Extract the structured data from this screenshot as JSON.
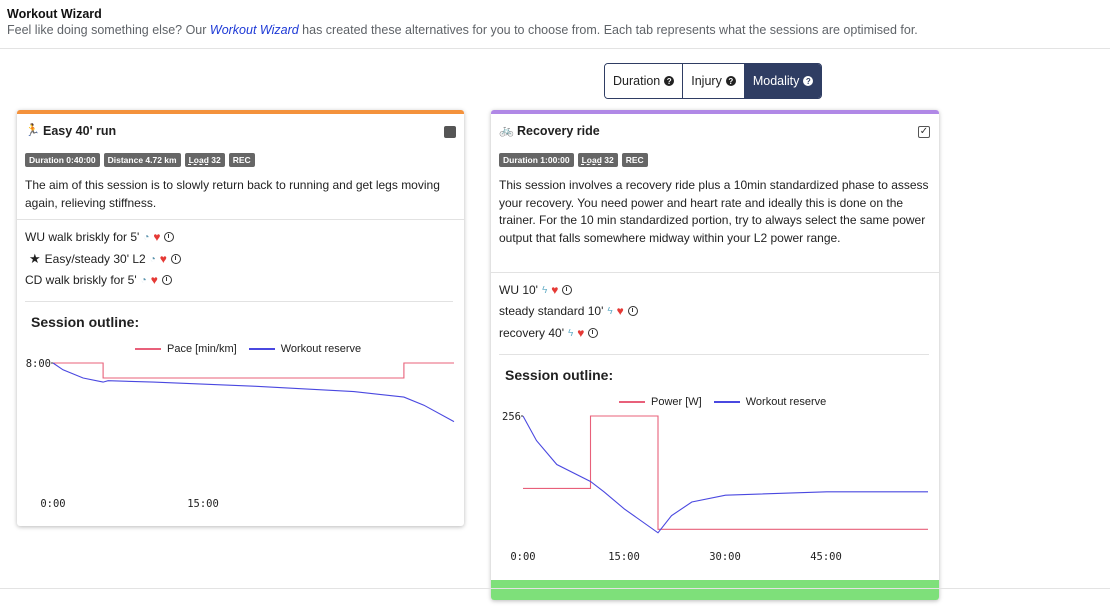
{
  "header": {
    "title": "Workout Wizard",
    "subtitle_before": "Feel like doing something else? Our ",
    "subtitle_link": "Workout Wizard",
    "subtitle_after": " has created these alternatives for you to choose from. Each tab represents what the sessions are optimised for."
  },
  "tabs": [
    {
      "label": "Duration",
      "active": false
    },
    {
      "label": "Injury",
      "active": false
    },
    {
      "label": "Modality",
      "active": true
    }
  ],
  "colors": {
    "run_accent": "#f4923c",
    "ride_accent": "#b088e6",
    "pace_line": "#e8607a",
    "reserve_line": "#4a48e0",
    "tab_active": "#2f3d63",
    "footer_green": "#7ee07a"
  },
  "cards": [
    {
      "title": "Easy 40' run",
      "icon": "running-icon",
      "checked": false,
      "badges": [
        {
          "label": "Duration 0:40:00",
          "underline": false
        },
        {
          "label": "Distance 4.72 km",
          "underline": false
        },
        {
          "label_prefix": "",
          "label_u": "Load",
          "label_suffix": " 32",
          "underline": true
        },
        {
          "label": "REC",
          "underline": false
        }
      ],
      "description": "The aim of this session is to slowly return back to running and get legs moving again, relieving stiffness.",
      "steps": [
        {
          "text": "WU walk briskly for 5'",
          "star": false,
          "icons": [
            "gauge-icon",
            "heart-icon",
            "clock-icon"
          ]
        },
        {
          "text": "Easy/steady 30' L2",
          "star": true,
          "icons": [
            "gauge-icon",
            "heart-icon",
            "clock-icon"
          ]
        },
        {
          "text": "CD walk briskly for 5'",
          "star": false,
          "icons": [
            "gauge-icon",
            "heart-icon",
            "clock-icon"
          ]
        }
      ],
      "outline_title": "Session outline:",
      "chart_data": {
        "type": "line",
        "series": [
          {
            "name": "Pace [min/km]",
            "x": [
              0,
              5,
              5,
              35,
              35,
              40
            ],
            "y": [
              8.0,
              8.0,
              6.9,
              6.9,
              8.0,
              8.0
            ]
          },
          {
            "name": "Workout reserve",
            "x": [
              0,
              1,
              3,
              5,
              5.5,
              10,
              20,
              30,
              35,
              37,
              40
            ],
            "y": [
              8.0,
              7.5,
              6.9,
              6.6,
              6.7,
              6.6,
              6.3,
              5.9,
              5.5,
              4.9,
              3.7
            ]
          }
        ],
        "y_tick_labels": [
          "8:00"
        ],
        "x_tick_labels": [
          "0:00",
          "15:00"
        ],
        "xlim": [
          0,
          40
        ]
      }
    },
    {
      "title": "Recovery ride",
      "icon": "bicycle-icon",
      "checked": true,
      "badges": [
        {
          "label": "Duration 1:00:00",
          "underline": false
        },
        {
          "label_prefix": "",
          "label_u": "Load",
          "label_suffix": " 32",
          "underline": true
        },
        {
          "label": "REC",
          "underline": false
        }
      ],
      "description": "This session involves a recovery ride plus a 10min standardized phase to assess your recovery. You need power and heart rate and ideally this is done on the trainer. For the 10 min standardized portion, try to always select the same power output that falls somewhere midway within your L2 power range.",
      "steps": [
        {
          "text": "WU 10'",
          "star": false,
          "icons": [
            "bolt-icon",
            "heart-icon",
            "clock-icon"
          ]
        },
        {
          "text": "steady standard 10'",
          "star": false,
          "icons": [
            "bolt-icon",
            "heart-icon",
            "clock-icon"
          ]
        },
        {
          "text": "recovery 40'",
          "star": false,
          "icons": [
            "bolt-icon",
            "heart-icon",
            "clock-icon"
          ]
        }
      ],
      "outline_title": "Session outline:",
      "chart_data": {
        "type": "line",
        "series": [
          {
            "name": "Power [W]",
            "x": [
              0,
              10,
              10,
              20,
              20,
              60
            ],
            "y": [
              150,
              150,
              256,
              256,
              90,
              90
            ]
          },
          {
            "name": "Workout reserve",
            "x": [
              0,
              2,
              5,
              10,
              12,
              15,
              20,
              22,
              25,
              30,
              45,
              60
            ],
            "y": [
              256,
              220,
              185,
              160,
              145,
              120,
              85,
              110,
              130,
              140,
              145,
              145
            ]
          }
        ],
        "y_tick_labels": [
          "256"
        ],
        "x_tick_labels": [
          "0:00",
          "15:00",
          "30:00",
          "45:00"
        ],
        "xlim": [
          0,
          60
        ]
      }
    }
  ]
}
